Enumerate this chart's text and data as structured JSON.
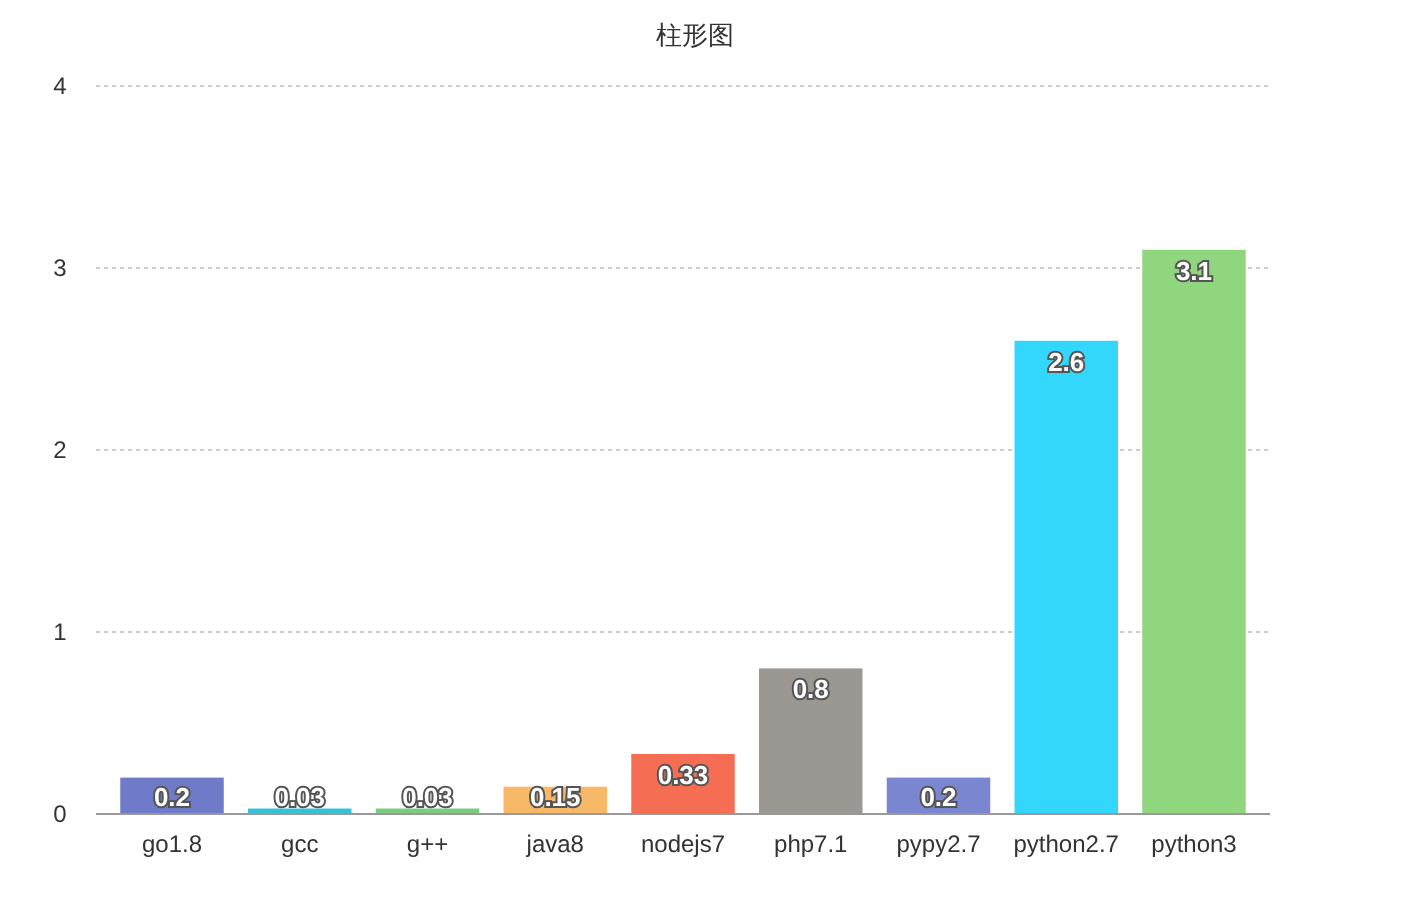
{
  "chart_data": {
    "type": "bar",
    "title": "柱形图",
    "categories": [
      "go1.8",
      "gcc",
      "g++",
      "java8",
      "nodejs7",
      "php7.1",
      "pypy2.7",
      "python2.7",
      "python3"
    ],
    "values": [
      0.2,
      0.03,
      0.03,
      0.15,
      0.33,
      0.8,
      0.2,
      2.6,
      3.1
    ],
    "colors": [
      "#6f7bc8",
      "#33c3d9",
      "#7dcb7d",
      "#f7b868",
      "#f56e54",
      "#9b9894",
      "#7b86d0",
      "#33d7fb",
      "#8fd67f"
    ],
    "ylim": [
      0,
      4
    ],
    "yticks": [
      0,
      1,
      2,
      3,
      4
    ],
    "grid": "y",
    "data_labels": true
  }
}
